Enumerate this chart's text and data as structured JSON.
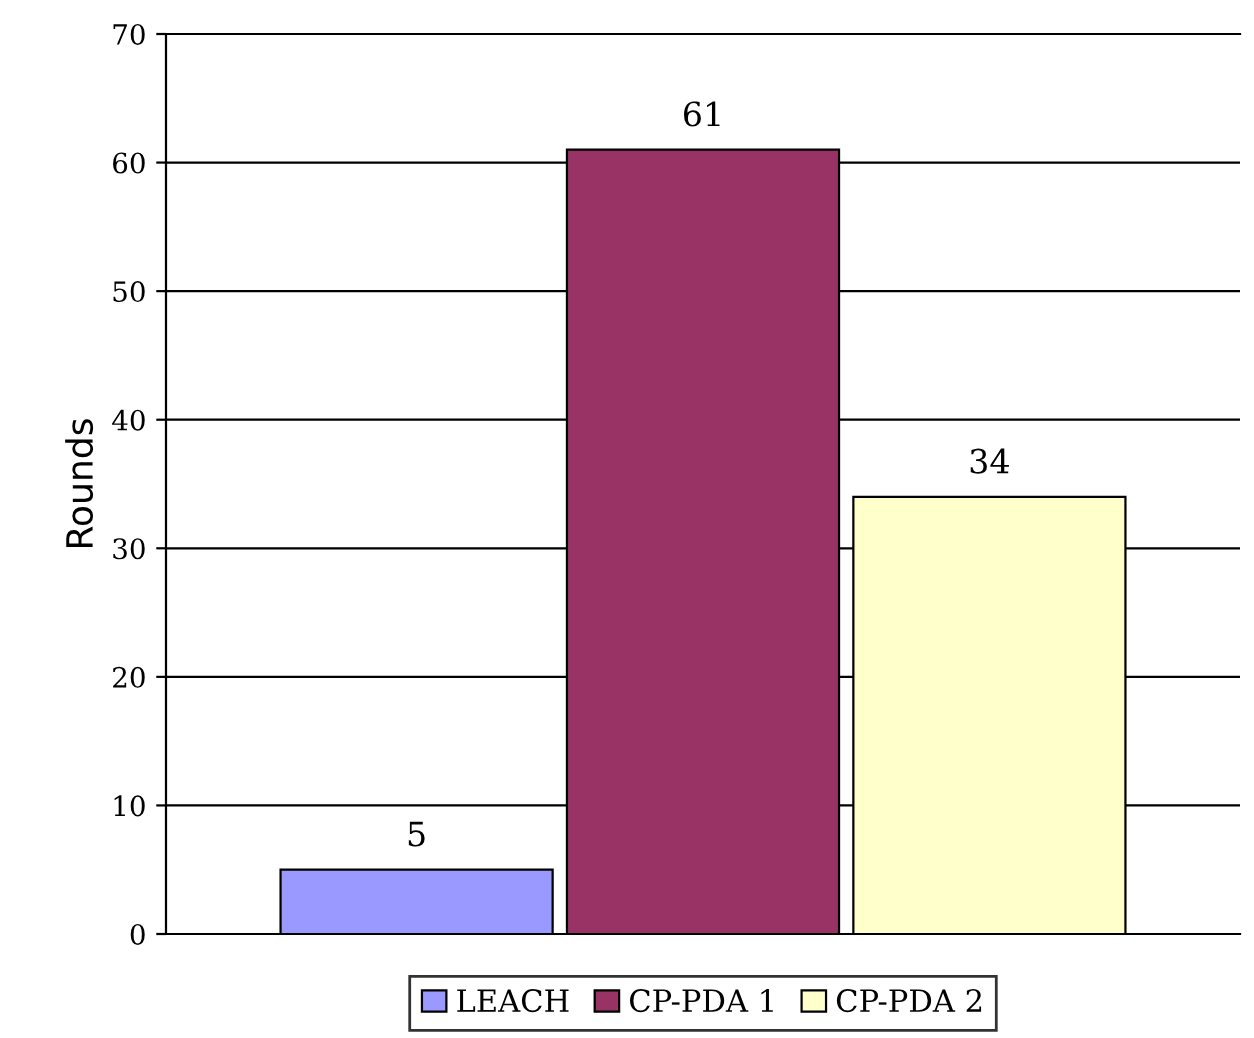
{
  "chart_data": {
    "type": "bar",
    "categories": [
      null
    ],
    "ylabel": "Rounds",
    "series": [
      {
        "name": "LEACH",
        "color": "#9999ff",
        "values": [
          5
        ]
      },
      {
        "name": "CP-PDA 1",
        "color": "#993366",
        "values": [
          61
        ]
      },
      {
        "name": "CP-PDA 2",
        "color": "#ffffcc",
        "values": [
          34
        ]
      }
    ],
    "ylim": [
      0,
      70
    ],
    "yticks": [
      0,
      10,
      20,
      30,
      40,
      50,
      60,
      70
    ],
    "grid": "y",
    "legend": "bottom",
    "data_labels": true
  }
}
